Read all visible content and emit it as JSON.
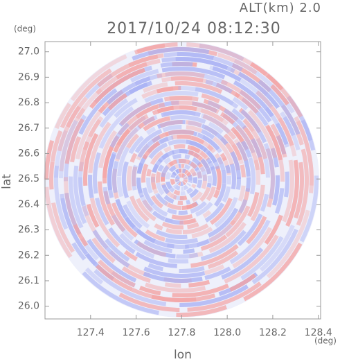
{
  "chart_data": {
    "type": "image",
    "title": "2017/10/24 08:12:30",
    "subtitle": "ALT(km) 2.0",
    "xlabel": "lon",
    "ylabel": "lat",
    "xunit": "(deg)",
    "yunit": "(deg)",
    "xlim": [
      127.2,
      128.41
    ],
    "ylim": [
      25.95,
      27.04
    ],
    "xticks": [
      127.4,
      127.6,
      127.8,
      {
        "value": 128,
        "label": "128.0"
      },
      128.2,
      128.4
    ],
    "yticks": [
      {
        "value": 26,
        "label": "26.0"
      },
      26.1,
      26.2,
      26.3,
      26.4,
      26.5,
      26.6,
      26.7,
      26.8,
      26.9,
      {
        "value": 27,
        "label": "27.0"
      }
    ]
  }
}
